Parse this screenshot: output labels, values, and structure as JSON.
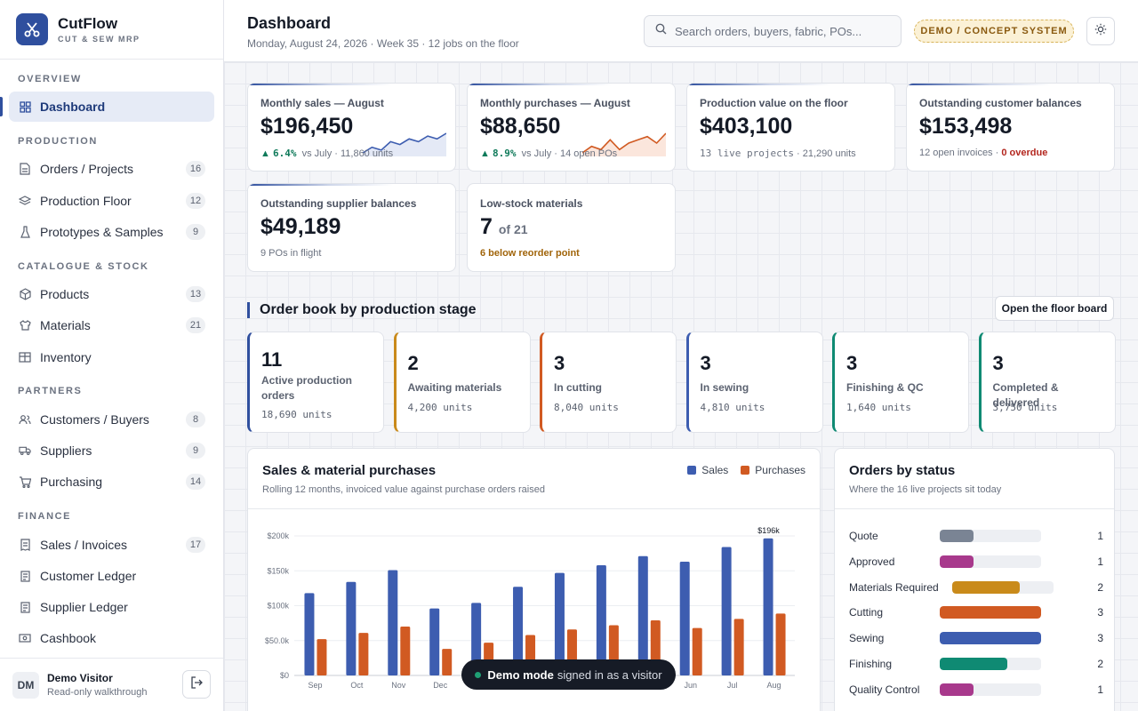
{
  "brand": {
    "name": "CutFlow",
    "subtitle": "CUT & SEW MRP"
  },
  "nav": {
    "overview_label": "OVERVIEW",
    "production_label": "PRODUCTION",
    "catalogue_label": "CATALOGUE & STOCK",
    "partners_label": "PARTNERS",
    "finance_label": "FINANCE",
    "items": [
      {
        "label": "Dashboard",
        "icon": "grid-icon"
      },
      {
        "label": "Orders / Projects",
        "badge": "16",
        "icon": "document-icon"
      },
      {
        "label": "Production Floor",
        "badge": "12",
        "icon": "layers-icon"
      },
      {
        "label": "Prototypes & Samples",
        "badge": "9",
        "icon": "flask-icon"
      },
      {
        "label": "Products",
        "badge": "13",
        "icon": "box-icon"
      },
      {
        "label": "Materials",
        "badge": "21",
        "icon": "shirt-icon"
      },
      {
        "label": "Inventory",
        "icon": "warehouse-icon"
      },
      {
        "label": "Customers / Buyers",
        "badge": "8",
        "icon": "users-icon"
      },
      {
        "label": "Suppliers",
        "badge": "9",
        "icon": "truck-icon"
      },
      {
        "label": "Purchasing",
        "badge": "14",
        "icon": "cart-icon"
      },
      {
        "label": "Sales / Invoices",
        "badge": "17",
        "icon": "receipt-icon"
      },
      {
        "label": "Customer Ledger",
        "icon": "ledger-icon"
      },
      {
        "label": "Supplier Ledger",
        "icon": "ledger-icon"
      },
      {
        "label": "Cashbook",
        "icon": "cash-icon"
      }
    ]
  },
  "user": {
    "initials": "DM",
    "name": "Demo Visitor",
    "role": "Read-only walkthrough"
  },
  "header": {
    "title": "Dashboard",
    "subtitle": "Monday, August 24, 2026 · Week 35 · 12 jobs on the floor",
    "search_placeholder": "Search orders, buyers, fabric, POs...",
    "demo_badge": "DEMO / CONCEPT SYSTEM"
  },
  "kpis": {
    "sales": {
      "label": "Monthly sales — August",
      "value": "$196,450",
      "delta": "6.4%",
      "foot": "vs July · 11,860 units",
      "trend": [
        2,
        4,
        3,
        6,
        5,
        7,
        6,
        8,
        7,
        9
      ]
    },
    "purchases": {
      "label": "Monthly purchases — August",
      "value": "$88,650",
      "delta": "8.9%",
      "foot": "vs July · 14 open POs",
      "trend": [
        3,
        5,
        4,
        7,
        4,
        6,
        7,
        8,
        6,
        9
      ]
    },
    "production": {
      "label": "Production value on the floor",
      "value": "$403,100",
      "mono": "13 live projects",
      "foot": "· 21,290 units"
    },
    "customer_bal": {
      "label": "Outstanding customer balances",
      "value": "$153,498",
      "foot": "12 open invoices ·",
      "alert": "0 overdue"
    },
    "supplier_bal": {
      "label": "Outstanding supplier balances",
      "value": "$49,189",
      "foot": "9 POs in flight"
    },
    "low_stock": {
      "label": "Low-stock materials",
      "value": "7",
      "of": "of 21",
      "foot": "6 below reorder point"
    }
  },
  "order_book": {
    "title": "Order book by production stage",
    "button": "Open the floor board",
    "stages": [
      {
        "count": "11",
        "label": "Active production orders",
        "units": "18,690 units",
        "color": "#2f4f9e"
      },
      {
        "count": "2",
        "label": "Awaiting materials",
        "units": "4,200 units",
        "color": "#c98a1a"
      },
      {
        "count": "3",
        "label": "In cutting",
        "units": "8,040 units",
        "color": "#d15a22"
      },
      {
        "count": "3",
        "label": "In sewing",
        "units": "4,810 units",
        "color": "#3d5db0"
      },
      {
        "count": "3",
        "label": "Finishing & QC",
        "units": "1,640 units",
        "color": "#0f8a73"
      },
      {
        "count": "3",
        "label": "Completed & delivered",
        "units": "3,750 units",
        "color": "#0f8a73"
      }
    ]
  },
  "chart_data": {
    "type": "bar",
    "title": "Sales & material purchases",
    "subtitle": "Rolling 12 months, invoiced value against purchase orders raised",
    "categories": [
      "Sep",
      "Oct",
      "Nov",
      "Dec",
      "Jan",
      "Feb",
      "Mar",
      "Apr",
      "May",
      "Jun",
      "Jul",
      "Aug"
    ],
    "series": [
      {
        "name": "Sales",
        "color": "#3d5db0",
        "values": [
          118000,
          134000,
          151000,
          96000,
          104000,
          127000,
          147000,
          158000,
          171000,
          163000,
          184000,
          196450
        ]
      },
      {
        "name": "Purchases",
        "color": "#d15a22",
        "values": [
          52000,
          61000,
          70000,
          38000,
          47000,
          58000,
          66000,
          72000,
          79000,
          68000,
          81000,
          88650
        ]
      }
    ],
    "ylim": [
      0,
      200000
    ],
    "yticks": [
      "$0",
      "$50.0k",
      "$100k",
      "$150k",
      "$200k"
    ],
    "annotation": "$196k",
    "legend": "top-right",
    "grid": true
  },
  "orders_status": {
    "title": "Orders by status",
    "subtitle": "Where the 16 live projects sit today",
    "rows": [
      {
        "name": "Quote",
        "count": "1",
        "fraction": 0.33,
        "color": "#7a8494"
      },
      {
        "name": "Approved",
        "count": "1",
        "fraction": 0.33,
        "color": "#a8398c"
      },
      {
        "name": "Materials Required",
        "count": "2",
        "fraction": 0.67,
        "color": "#c98a1a"
      },
      {
        "name": "Cutting",
        "count": "3",
        "fraction": 1.0,
        "color": "#d15a22"
      },
      {
        "name": "Sewing",
        "count": "3",
        "fraction": 1.0,
        "color": "#3d5db0"
      },
      {
        "name": "Finishing",
        "count": "2",
        "fraction": 0.67,
        "color": "#0f8a73"
      },
      {
        "name": "Quality Control",
        "count": "1",
        "fraction": 0.33,
        "color": "#a8398c"
      }
    ]
  },
  "toast": {
    "bold": "Demo mode",
    "text": "signed in as a visitor"
  }
}
